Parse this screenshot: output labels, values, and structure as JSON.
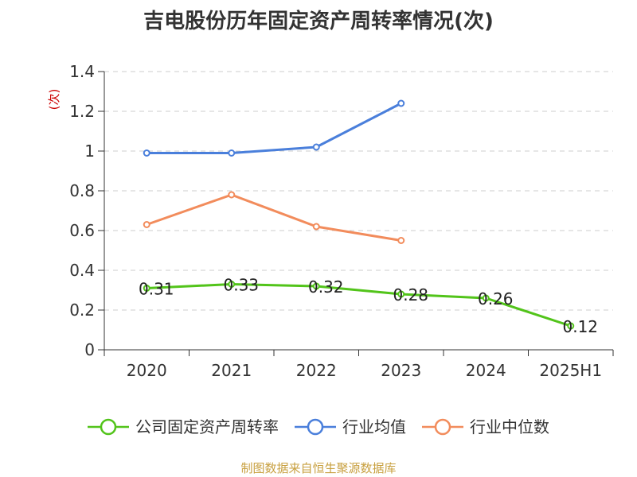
{
  "chart_data": {
    "type": "line",
    "title": "吉电股份历年固定资产周转率情况(次)",
    "ylabel": "(次)",
    "ylim": [
      0,
      1.4
    ],
    "yticks": [
      "0",
      "0.2",
      "0.4",
      "0.6",
      "0.8",
      "1",
      "1.2",
      "1.4"
    ],
    "categories": [
      "2020",
      "2021",
      "2022",
      "2023",
      "2024",
      "2025H1"
    ],
    "grid": true,
    "legend_position": "bottom",
    "series": [
      {
        "name": "公司固定资产周转率",
        "color": "#52c41a",
        "values": [
          0.31,
          0.33,
          0.32,
          0.28,
          0.26,
          0.12
        ],
        "labels": [
          "0.31",
          "0.33",
          "0.32",
          "0.28",
          "0.26",
          "0.12"
        ]
      },
      {
        "name": "行业均值",
        "color": "#4a7fdb",
        "values": [
          0.99,
          0.99,
          1.02,
          1.24,
          null,
          null
        ]
      },
      {
        "name": "行业中位数",
        "color": "#f28c5c",
        "values": [
          0.63,
          0.78,
          0.62,
          0.55,
          null,
          null
        ]
      }
    ],
    "source": "制图数据来自恒生聚源数据库",
    "source_color": "#c8a040",
    "ylabel_color": "#cc0000"
  }
}
